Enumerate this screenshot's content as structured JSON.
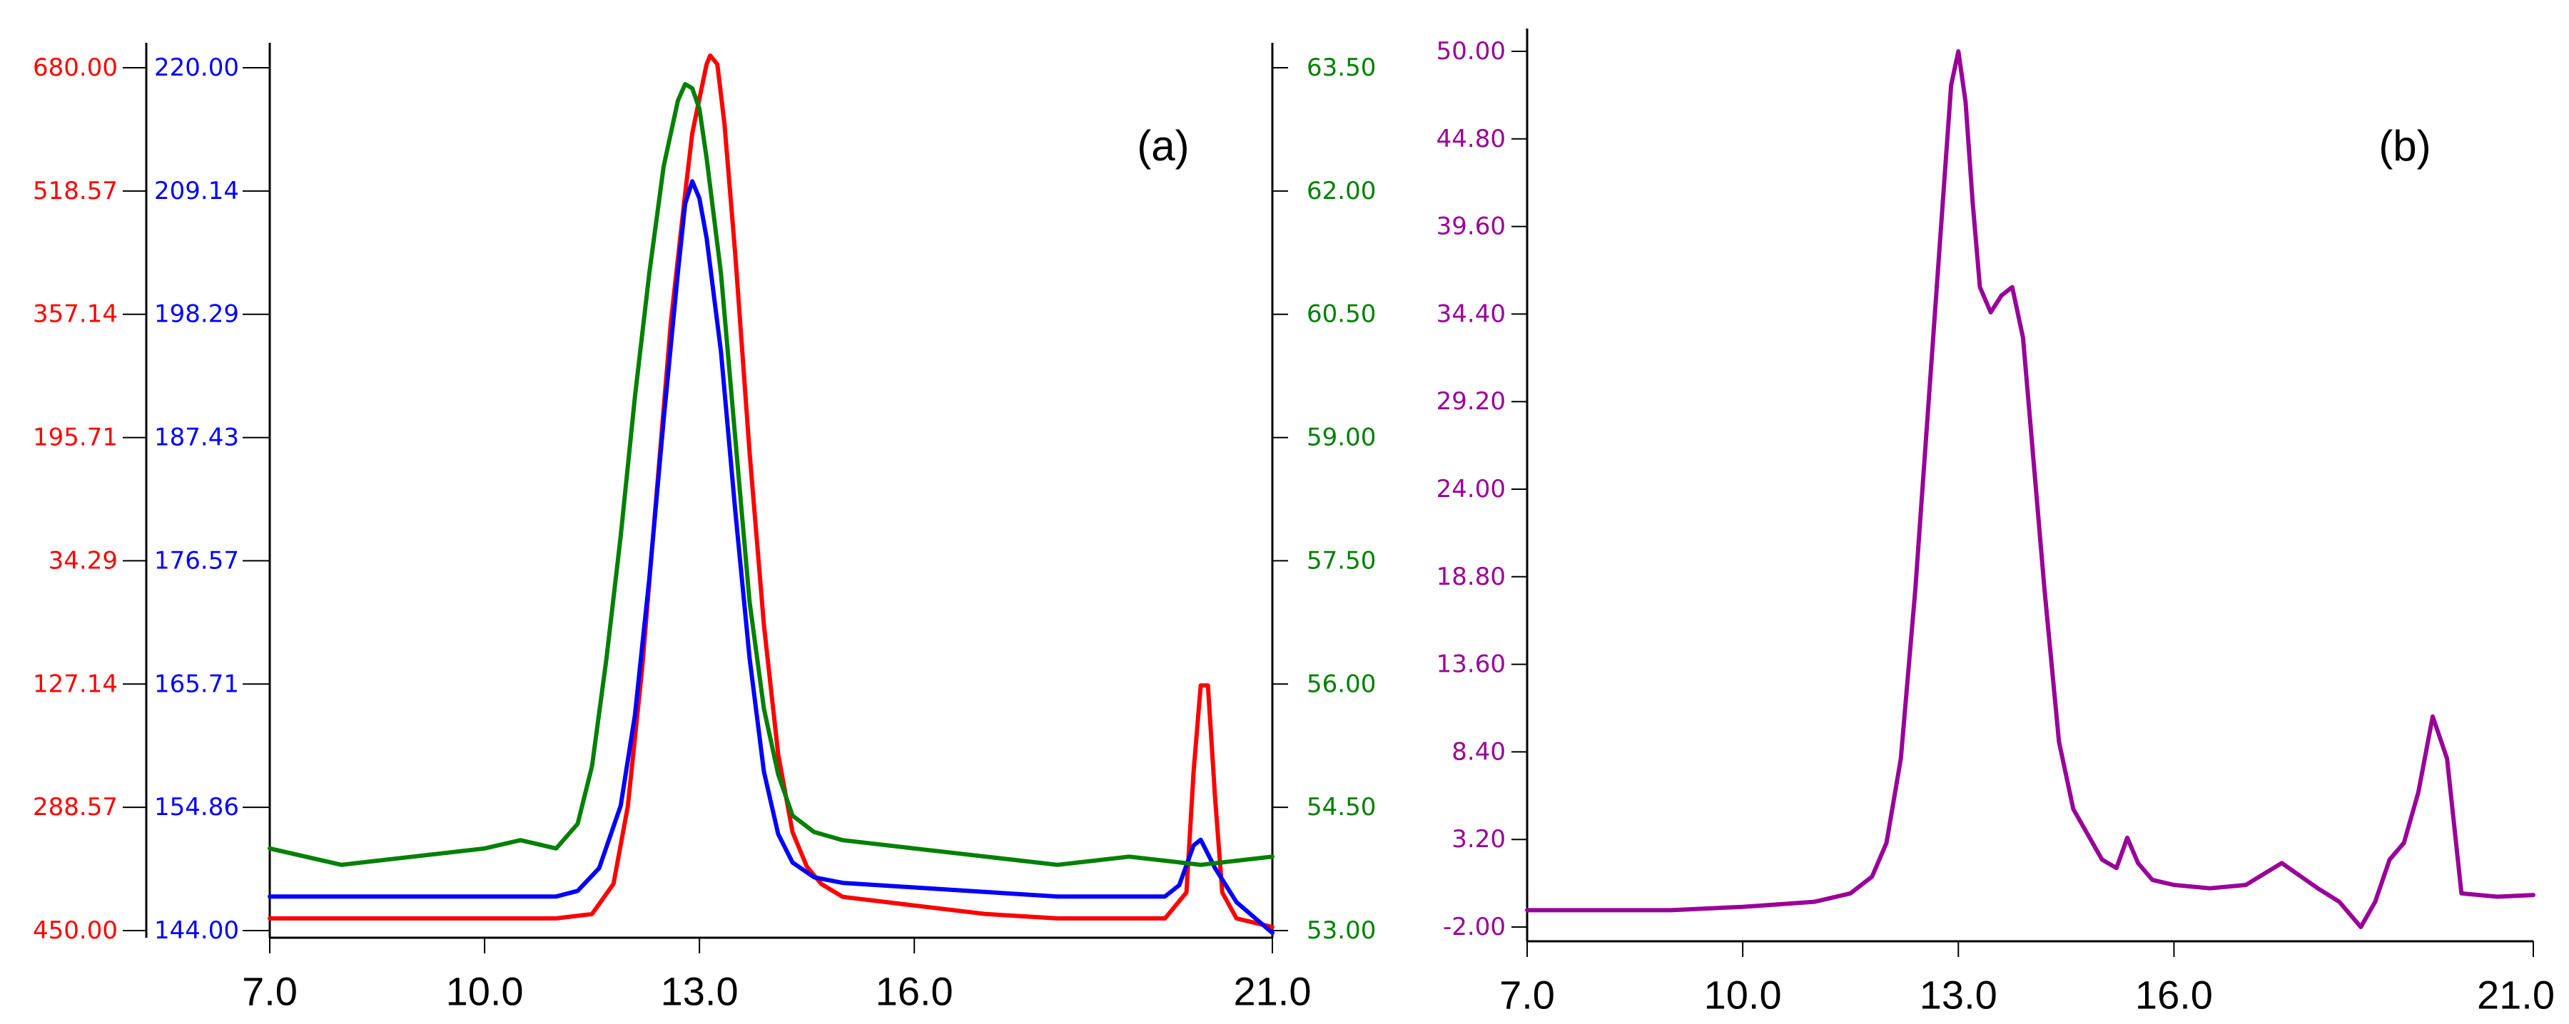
{
  "chart_data": [
    {
      "type": "line",
      "panel_label": "(a)",
      "x_ticks": [
        "7.0",
        "10.0",
        "13.0",
        "16.0",
        "21.0"
      ],
      "x_tick_values": [
        7,
        10,
        13,
        16,
        21
      ],
      "xlim": [
        7,
        21
      ],
      "y_axes": [
        {
          "position": "left-outer",
          "color": "#ff0000",
          "tick_labels": [
            "680.00",
            "518.57",
            "357.14",
            "195.71",
            "34.29",
            "127.14",
            "288.57",
            "450.00"
          ]
        },
        {
          "position": "left-inner",
          "color": "#0000ff",
          "tick_labels": [
            "220.00",
            "209.14",
            "198.29",
            "187.43",
            "176.57",
            "165.71",
            "154.86",
            "144.00"
          ],
          "ylim": [
            144,
            220
          ]
        },
        {
          "position": "right",
          "color": "#008000",
          "tick_labels": [
            "63.50",
            "62.00",
            "60.50",
            "59.00",
            "57.50",
            "56.00",
            "54.50",
            "53.00"
          ],
          "ylim": [
            53,
            63.5
          ]
        }
      ],
      "series": [
        {
          "color": "#ff0000",
          "axis": "normalized",
          "x": [
            7.0,
            11.0,
            11.5,
            11.8,
            12.0,
            12.2,
            12.4,
            12.6,
            12.8,
            12.9,
            13.0,
            13.1,
            13.15,
            13.25,
            13.35,
            13.5,
            13.7,
            13.9,
            14.1,
            14.3,
            14.5,
            14.7,
            15.0,
            16.0,
            17.0,
            18.0,
            19.5,
            19.8,
            19.9,
            20.0,
            20.1,
            20.2,
            20.3,
            20.5,
            21.0
          ],
          "y": [
            0.01,
            0.01,
            0.015,
            0.05,
            0.14,
            0.3,
            0.5,
            0.7,
            0.85,
            0.92,
            0.96,
            1.0,
            1.01,
            1.0,
            0.93,
            0.78,
            0.55,
            0.35,
            0.2,
            0.11,
            0.07,
            0.05,
            0.035,
            0.025,
            0.015,
            0.01,
            0.01,
            0.04,
            0.18,
            0.28,
            0.28,
            0.15,
            0.04,
            0.01,
            0.0
          ]
        },
        {
          "color": "#0000ff",
          "axis": "left-inner",
          "x": [
            7.0,
            11.0,
            11.3,
            11.6,
            11.9,
            12.1,
            12.3,
            12.5,
            12.7,
            12.8,
            12.9,
            13.0,
            13.1,
            13.3,
            13.5,
            13.7,
            13.9,
            14.1,
            14.3,
            14.6,
            15.0,
            16.0,
            17.0,
            18.0,
            19.5,
            19.7,
            19.9,
            20.0,
            20.2,
            20.5,
            21.0
          ],
          "y": [
            147.0,
            147.0,
            147.5,
            149.5,
            155.0,
            163.0,
            175.0,
            189.0,
            202.0,
            208.0,
            210.0,
            208.5,
            205.0,
            195.0,
            181.0,
            168.0,
            158.0,
            152.5,
            150.0,
            148.7,
            148.2,
            147.8,
            147.4,
            147.0,
            147.0,
            148.0,
            151.5,
            152.0,
            149.5,
            146.5,
            143.8
          ]
        },
        {
          "color": "#008000",
          "axis": "right",
          "x": [
            7.0,
            8.0,
            9.0,
            10.0,
            10.5,
            11.0,
            11.3,
            11.5,
            11.7,
            11.9,
            12.1,
            12.3,
            12.5,
            12.7,
            12.8,
            12.9,
            13.0,
            13.1,
            13.3,
            13.5,
            13.7,
            13.9,
            14.1,
            14.3,
            14.6,
            15.0,
            16.0,
            17.0,
            18.0,
            19.0,
            20.0,
            21.0
          ],
          "y": [
            54.0,
            53.8,
            53.9,
            54.0,
            54.1,
            54.0,
            54.3,
            55.0,
            56.3,
            57.8,
            59.5,
            61.0,
            62.3,
            63.1,
            63.3,
            63.25,
            63.0,
            62.4,
            61.0,
            59.0,
            57.0,
            55.7,
            54.9,
            54.4,
            54.2,
            54.1,
            54.0,
            53.9,
            53.8,
            53.9,
            53.8,
            53.9
          ]
        }
      ]
    },
    {
      "type": "line",
      "panel_label": "(b)",
      "x_ticks": [
        "7.0",
        "10.0",
        "13.0",
        "16.0",
        "21.0"
      ],
      "x_tick_values": [
        7,
        10,
        13,
        16,
        21
      ],
      "xlim": [
        7,
        21
      ],
      "ylim": [
        -2,
        50
      ],
      "y_tick_labels": [
        "50.00",
        "44.80",
        "39.60",
        "34.40",
        "29.20",
        "24.00",
        "18.80",
        "13.60",
        "8.40",
        "3.20",
        "-2.00"
      ],
      "y_tick_values": [
        50,
        44.8,
        39.6,
        34.4,
        29.2,
        24,
        18.8,
        13.6,
        8.4,
        3.2,
        -2
      ],
      "series": [
        {
          "color": "#990099",
          "x": [
            7.0,
            9.0,
            10.0,
            11.0,
            11.5,
            11.8,
            12.0,
            12.2,
            12.4,
            12.6,
            12.8,
            12.9,
            13.0,
            13.1,
            13.2,
            13.3,
            13.45,
            13.6,
            13.75,
            13.9,
            14.0,
            14.2,
            14.4,
            14.6,
            14.8,
            15.0,
            15.2,
            15.35,
            15.5,
            15.7,
            16.0,
            16.5,
            17.0,
            17.5,
            18.0,
            18.3,
            18.6,
            18.8,
            19.0,
            19.2,
            19.4,
            19.6,
            19.8,
            20.0,
            20.5,
            21.0
          ],
          "y": [
            -1.0,
            -1.0,
            -0.8,
            -0.5,
            0.0,
            1.0,
            3.0,
            8.0,
            18.0,
            30.0,
            42.0,
            48.0,
            50.0,
            47.0,
            41.0,
            36.0,
            34.5,
            35.5,
            36.0,
            33.0,
            28.0,
            18.0,
            9.0,
            5.0,
            3.5,
            2.0,
            1.5,
            3.3,
            1.8,
            0.8,
            0.5,
            0.3,
            0.5,
            1.8,
            0.3,
            -0.5,
            -2.0,
            -0.5,
            2.0,
            3.0,
            6.0,
            10.5,
            8.0,
            0.0,
            -0.2,
            -0.1
          ]
        }
      ]
    }
  ]
}
